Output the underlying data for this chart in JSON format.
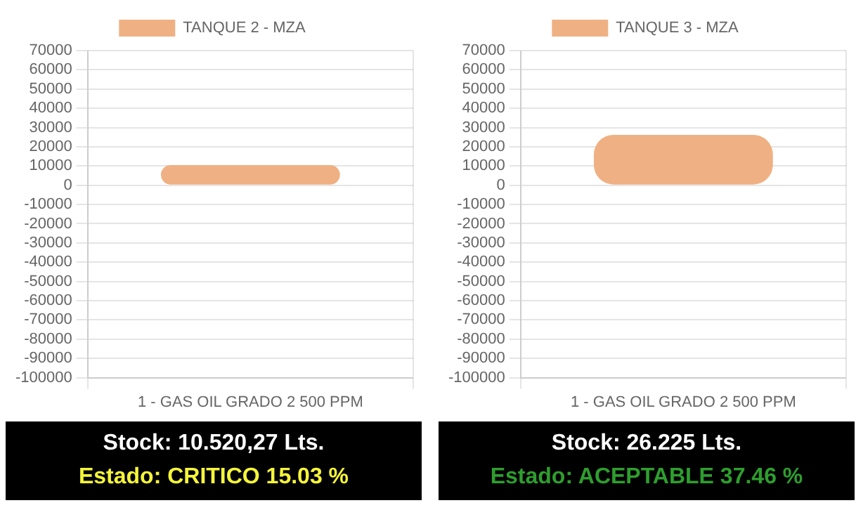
{
  "chart_data": [
    {
      "type": "bar",
      "categories": [
        "1 - GAS OIL GRADO 2 500 PPM"
      ],
      "series": [
        {
          "name": "TANQUE 2 - MZA",
          "color": "#efb183",
          "values": [
            10520.27
          ]
        }
      ],
      "ylim": [
        -100000,
        70000
      ],
      "yticks": [
        -100000,
        -90000,
        -80000,
        -70000,
        -60000,
        -50000,
        -40000,
        -30000,
        -20000,
        -10000,
        0,
        10000,
        20000,
        30000,
        40000,
        50000,
        60000,
        70000
      ],
      "grid": true,
      "legend": "top",
      "annotations": [
        "Stock: 10.520,27 Lts.",
        "Estado: CRITICO 15.03 %"
      ]
    },
    {
      "type": "bar",
      "categories": [
        "1 - GAS OIL GRADO 2 500 PPM"
      ],
      "series": [
        {
          "name": "TANQUE 3 - MZA",
          "color": "#efb183",
          "values": [
            26225
          ]
        }
      ],
      "ylim": [
        -100000,
        70000
      ],
      "yticks": [
        -100000,
        -90000,
        -80000,
        -70000,
        -60000,
        -50000,
        -40000,
        -30000,
        -20000,
        -10000,
        0,
        10000,
        20000,
        30000,
        40000,
        50000,
        60000,
        70000
      ],
      "grid": true,
      "legend": "top",
      "annotations": [
        "Stock: 26.225 Lts.",
        "Estado: ACEPTABLE 37.46 %"
      ]
    }
  ]
}
